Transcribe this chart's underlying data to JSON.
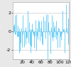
{
  "xlim": [
    0,
    120
  ],
  "ylim": [
    -3.0,
    3.2
  ],
  "xticks": [
    20,
    40,
    60,
    80,
    100,
    120
  ],
  "yticks": [
    -2,
    0,
    2
  ],
  "ytick_labels": [
    "-2",
    "0",
    "2"
  ],
  "bar_color": "#6DCFF6",
  "background_color": "#e8e8e8",
  "plot_bg_color": "#ffffff",
  "grid_color": "#cccccc",
  "n_points": 120,
  "seed": 42,
  "signal_scale": 1.2,
  "tick_fontsize": 4.5,
  "linewidth": 0.7,
  "figsize": [
    1.0,
    0.94
  ],
  "dpi": 100
}
